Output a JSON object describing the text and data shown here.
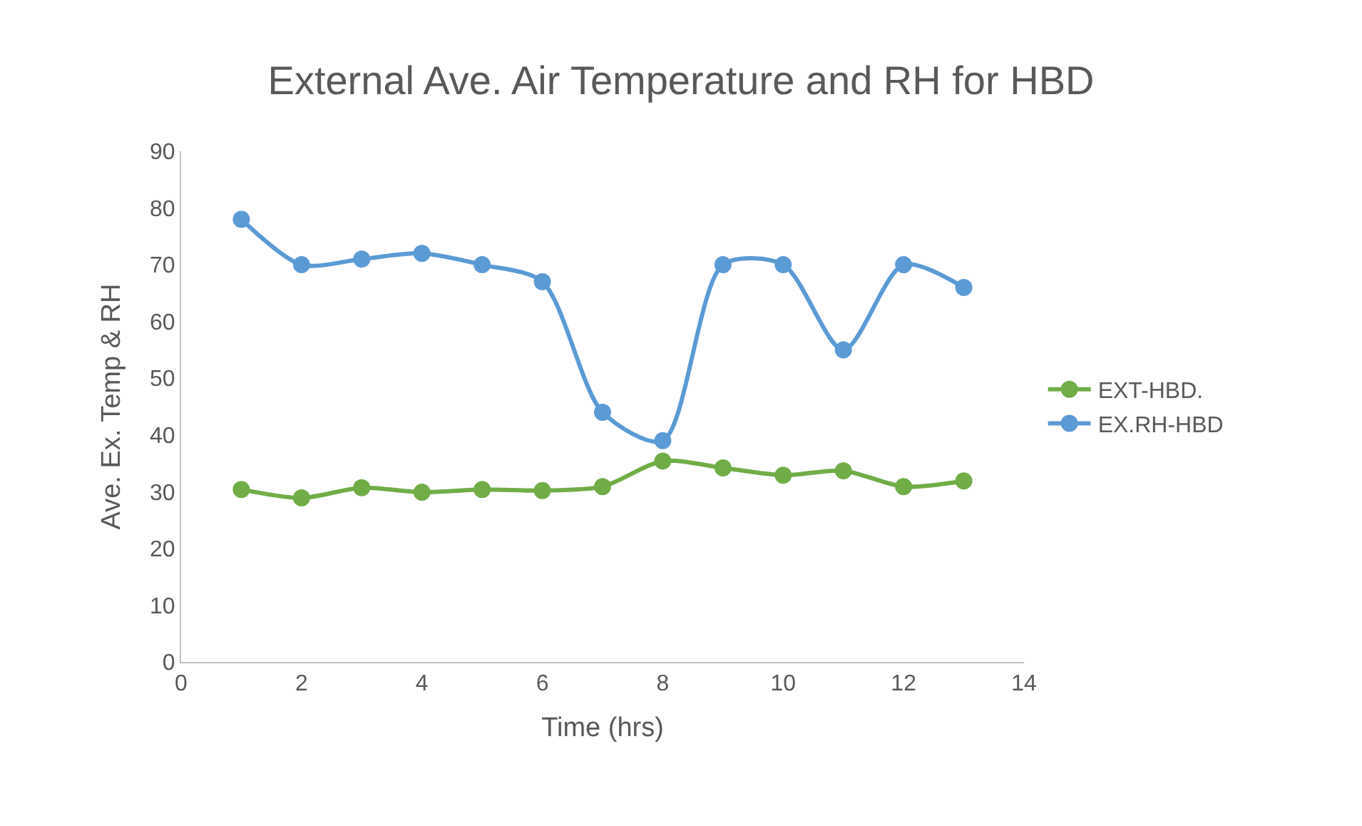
{
  "chart_data": {
    "type": "line",
    "title": "External Ave. Air Temperature and RH for HBD",
    "xlabel": "Time (hrs)",
    "ylabel": "Ave. Ex. Temp & RH",
    "x": [
      1,
      2,
      3,
      4,
      5,
      6,
      7,
      8,
      9,
      10,
      11,
      12,
      13
    ],
    "series": [
      {
        "name": "EXT-HBD.",
        "color": "#70ad47",
        "values": [
          30.4,
          28.9,
          30.7,
          29.9,
          30.4,
          30.2,
          30.9,
          35.4,
          34.2,
          32.9,
          33.7,
          30.9,
          31.9
        ]
      },
      {
        "name": "EX.RH-HBD",
        "color": "#5b9bd5",
        "values": [
          78,
          70,
          71,
          72,
          70,
          67,
          44,
          39,
          70,
          70,
          55,
          70,
          66
        ]
      }
    ],
    "xlim": [
      0,
      14
    ],
    "xticks": [
      0,
      2,
      4,
      6,
      8,
      10,
      12,
      14
    ],
    "ylim": [
      0,
      90
    ],
    "yticks": [
      0,
      10,
      20,
      30,
      40,
      50,
      60,
      70,
      80,
      90
    ],
    "grid": false,
    "legend": "right",
    "marker": "circle",
    "line_style": "solid"
  }
}
